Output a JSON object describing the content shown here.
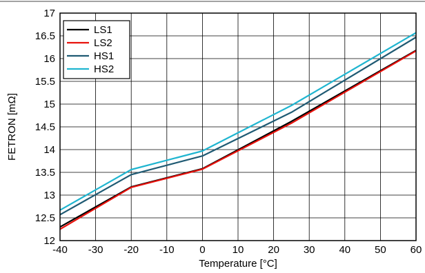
{
  "chart_data": {
    "type": "line",
    "xlabel": "Temperature [°C]",
    "ylabel": "FETRON [mΩ]",
    "xlim": [
      -40,
      60
    ],
    "ylim": [
      12,
      17
    ],
    "xticks": [
      -40,
      -30,
      -20,
      -10,
      0,
      10,
      20,
      30,
      40,
      50,
      60
    ],
    "yticks": [
      12,
      12.5,
      13,
      13.5,
      14,
      14.5,
      15,
      15.5,
      16,
      16.5,
      17
    ],
    "grid": true,
    "legend_position": "top-left",
    "series": [
      {
        "name": "LS1",
        "color": "#000000",
        "x": [
          -40,
          -20,
          0,
          25,
          60
        ],
        "y": [
          12.3,
          13.18,
          13.58,
          14.62,
          16.18
        ]
      },
      {
        "name": "LS2",
        "color": "#e8120c",
        "x": [
          -40,
          -20,
          0,
          25,
          60
        ],
        "y": [
          12.25,
          13.17,
          13.57,
          14.58,
          16.17
        ]
      },
      {
        "name": "HS1",
        "color": "#1f5a73",
        "x": [
          -40,
          -20,
          0,
          25,
          60
        ],
        "y": [
          12.57,
          13.45,
          13.86,
          14.82,
          16.47
        ]
      },
      {
        "name": "HS2",
        "color": "#1fb5d0",
        "x": [
          -40,
          -20,
          0,
          25,
          60
        ],
        "y": [
          12.67,
          13.56,
          13.97,
          14.97,
          16.57
        ]
      }
    ]
  }
}
